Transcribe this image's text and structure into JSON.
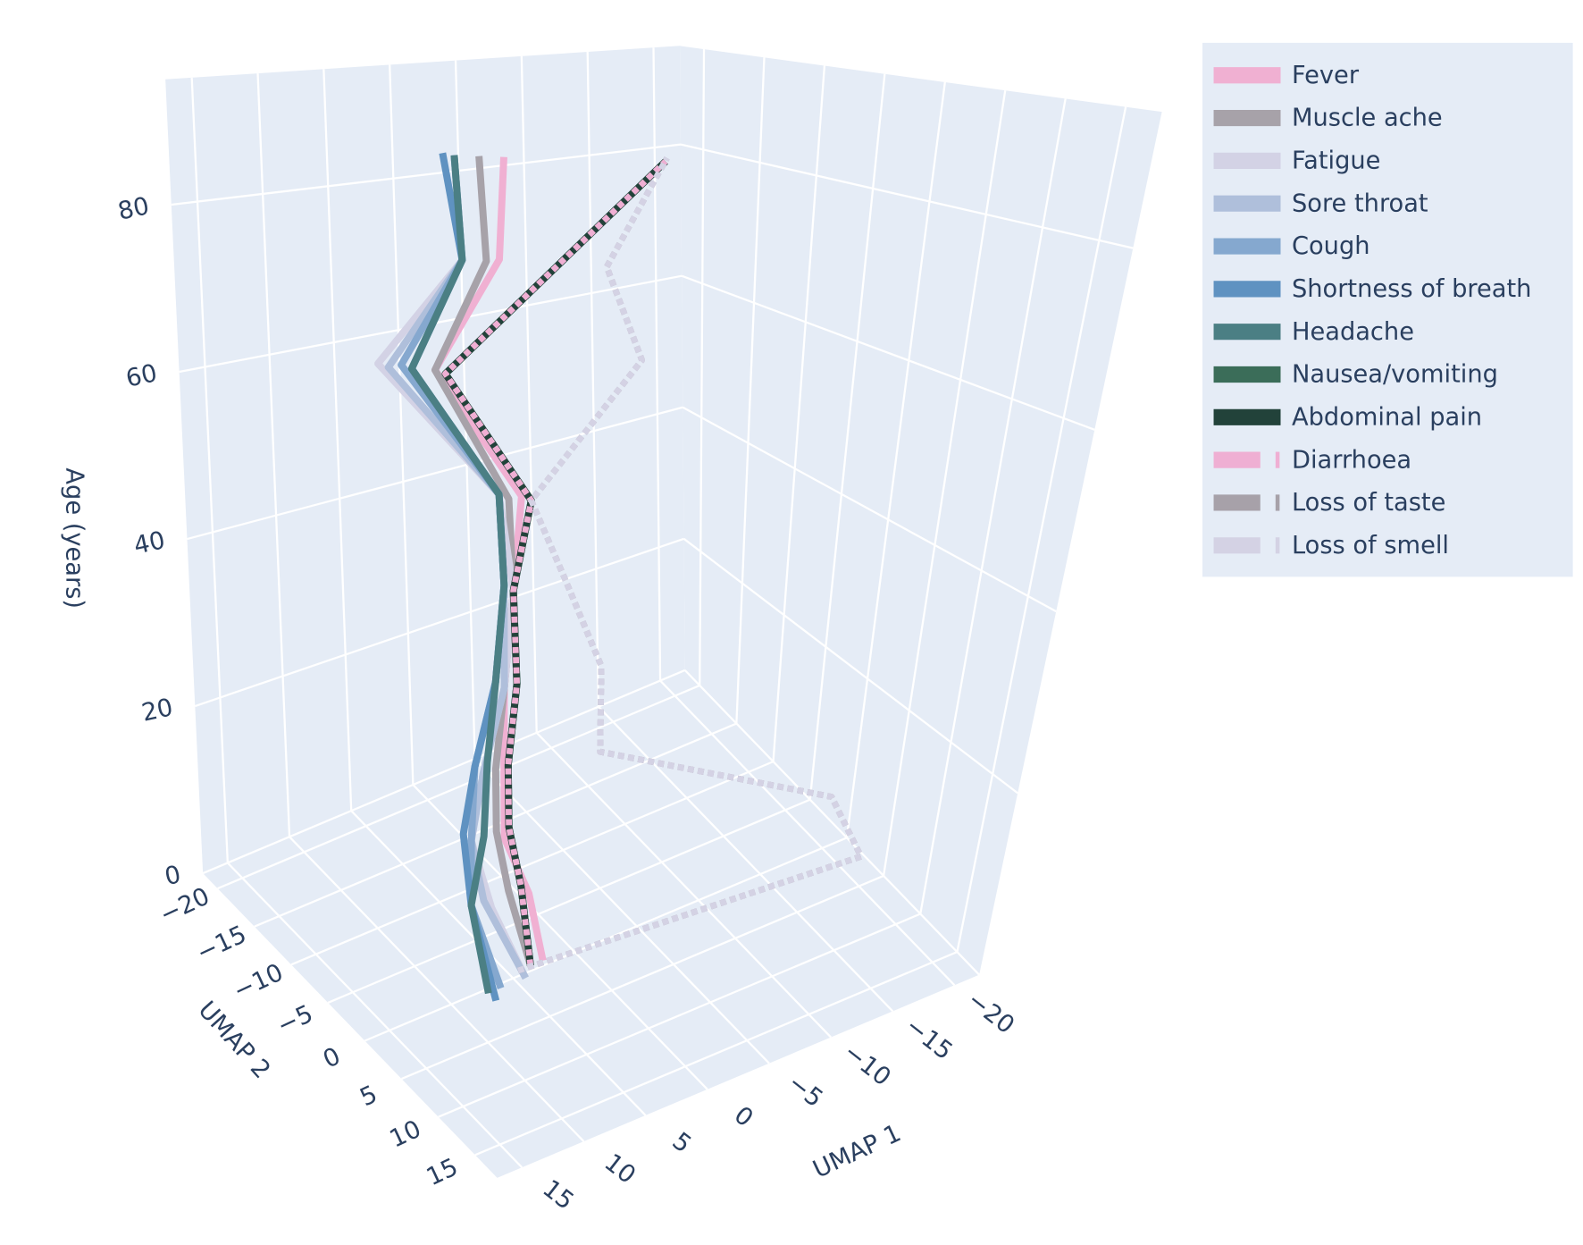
{
  "chart_data": {
    "type": "line3d",
    "xaxis_title": "UMAP 1",
    "yaxis_title": "UMAP 2",
    "zaxis_title": "Age (years)",
    "xlim": [
      -22,
      17
    ],
    "ylim": [
      -22,
      18
    ],
    "zlim": [
      0,
      95
    ],
    "xticks": [
      {
        "value": -20,
        "label": "−20"
      },
      {
        "value": -15,
        "label": "−15"
      },
      {
        "value": -10,
        "label": "−10"
      },
      {
        "value": -5,
        "label": "−5"
      },
      0,
      5,
      10,
      15
    ],
    "yticks": [
      {
        "value": -20,
        "label": "−20"
      },
      {
        "value": -15,
        "label": "−15"
      },
      {
        "value": -10,
        "label": "−10"
      },
      {
        "value": -5,
        "label": "−5"
      },
      0,
      5,
      10,
      15
    ],
    "zticks": [
      0,
      20,
      40,
      60,
      80
    ],
    "grid": true,
    "series": [
      {
        "name": "Fever",
        "color": "#f0b0d2",
        "dash": "solid",
        "x": [
          4,
          5,
          6,
          5,
          4,
          3,
          2,
          6,
          3,
          3
        ],
        "y": [
          2,
          1,
          -1,
          -3,
          -5,
          -6,
          -7,
          -11,
          -9,
          -9
        ],
        "z": [
          3,
          10,
          15,
          20,
          28,
          38,
          48,
          62,
          75,
          87
        ]
      },
      {
        "name": "Muscle ache",
        "color": "#a7a2a9",
        "dash": "solid",
        "x": [
          5,
          6,
          6,
          5,
          4,
          3,
          3,
          6,
          4,
          4
        ],
        "y": [
          2,
          0,
          -2,
          -4,
          -5,
          -6,
          -7,
          -11,
          -9,
          -10
        ],
        "z": [
          3,
          10,
          15,
          20,
          28,
          38,
          48,
          62,
          75,
          87
        ]
      },
      {
        "name": "Fatigue",
        "color": "#d3d2e5",
        "dash": "solid",
        "x": [
          6,
          8,
          8,
          6,
          4,
          3,
          3,
          8,
          5,
          5
        ],
        "y": [
          3,
          1,
          -2,
          -4,
          -5,
          -6,
          -8,
          -14,
          -10,
          -11
        ],
        "z": [
          3,
          10,
          15,
          20,
          28,
          38,
          48,
          62,
          75,
          87
        ]
      },
      {
        "name": "Sore throat",
        "color": "#afbfdb",
        "dash": "solid",
        "x": [
          6,
          8,
          8,
          6,
          4,
          3,
          3,
          8,
          5,
          5
        ],
        "y": [
          3,
          0,
          -2,
          -4,
          -5,
          -7,
          -8,
          -13,
          -10,
          -11
        ],
        "z": [
          3,
          10,
          15,
          20,
          28,
          38,
          48,
          62,
          75,
          87
        ]
      },
      {
        "name": "Cough",
        "color": "#85a8cf",
        "dash": "solid",
        "x": [
          8,
          9,
          8,
          6,
          4,
          3,
          3,
          7,
          5,
          5
        ],
        "y": [
          3,
          0,
          -2,
          -5,
          -6,
          -7,
          -8,
          -13,
          -10,
          -11
        ],
        "z": [
          3,
          10,
          15,
          20,
          28,
          38,
          48,
          62,
          75,
          87
        ]
      },
      {
        "name": "Shortness of breath",
        "color": "#5f92c1",
        "dash": "solid",
        "x": [
          9,
          9,
          8,
          6,
          4,
          3,
          3,
          7,
          5,
          5
        ],
        "y": [
          4,
          0,
          -3,
          -5,
          -6,
          -7,
          -8,
          -12,
          -10,
          -12
        ],
        "z": [
          3,
          10,
          15,
          20,
          28,
          38,
          48,
          62,
          75,
          87
        ]
      },
      {
        "name": "Headache",
        "color": "#4b7f84",
        "dash": "solid",
        "x": [
          9,
          9,
          7,
          5,
          4,
          3,
          3,
          7,
          5,
          5
        ],
        "y": [
          3,
          0,
          -2,
          -5,
          -6,
          -7,
          -8,
          -12,
          -10,
          -11
        ],
        "z": [
          3,
          10,
          15,
          20,
          28,
          38,
          48,
          62,
          75,
          87
        ]
      },
      {
        "name": "Nausea/vomiting",
        "color": "#3b6d59",
        "dash": "solid",
        "x": [
          5,
          5,
          5,
          4,
          3,
          3,
          2,
          6,
          1,
          -4
        ],
        "y": [
          2,
          0,
          -2,
          -4,
          -5,
          -6,
          -6,
          -10,
          -6,
          -3
        ],
        "z": [
          3,
          10,
          15,
          20,
          28,
          38,
          48,
          62,
          75,
          87
        ]
      },
      {
        "name": "Abdominal pain",
        "color": "#22423a",
        "dash": "solid",
        "x": [
          5,
          5,
          5,
          4,
          3,
          3,
          2,
          6,
          1,
          -4
        ],
        "y": [
          2,
          0,
          -2,
          -4,
          -5,
          -6,
          -6,
          -10,
          -6,
          -3
        ],
        "z": [
          3,
          10,
          15,
          20,
          28,
          38,
          48,
          62,
          75,
          87
        ]
      },
      {
        "name": "Diarrhoea",
        "color": "#efafd3",
        "dash": "dot",
        "x": [
          5,
          5,
          5,
          4,
          3,
          3,
          2,
          6,
          1,
          -4
        ],
        "y": [
          2,
          0,
          -2,
          -4,
          -5,
          -6,
          -6,
          -10,
          -6,
          -3
        ],
        "z": [
          3,
          10,
          15,
          20,
          28,
          38,
          48,
          62,
          75,
          87
        ]
      },
      {
        "name": "Loss of taste",
        "color": "#a7a1a9",
        "dash": "dot",
        "x": [
          6,
          -16,
          -15,
          -2,
          -3,
          -1,
          2,
          -6,
          -1,
          -5
        ],
        "y": [
          2,
          10,
          7,
          -2,
          -4,
          -6,
          -6,
          -6,
          -4,
          -4
        ],
        "z": [
          3,
          10,
          15,
          20,
          28,
          38,
          48,
          62,
          75,
          87
        ]
      },
      {
        "name": "Loss of smell",
        "color": "#d4d2e4",
        "dash": "dot",
        "x": [
          6,
          -16,
          -15,
          -2,
          -3,
          -1,
          2,
          -6,
          -1,
          -5
        ],
        "y": [
          2,
          10,
          7,
          -2,
          -4,
          -6,
          -6,
          -6,
          -4,
          -4
        ],
        "z": [
          3,
          10,
          15,
          20,
          28,
          38,
          48,
          62,
          75,
          87
        ]
      }
    ]
  }
}
